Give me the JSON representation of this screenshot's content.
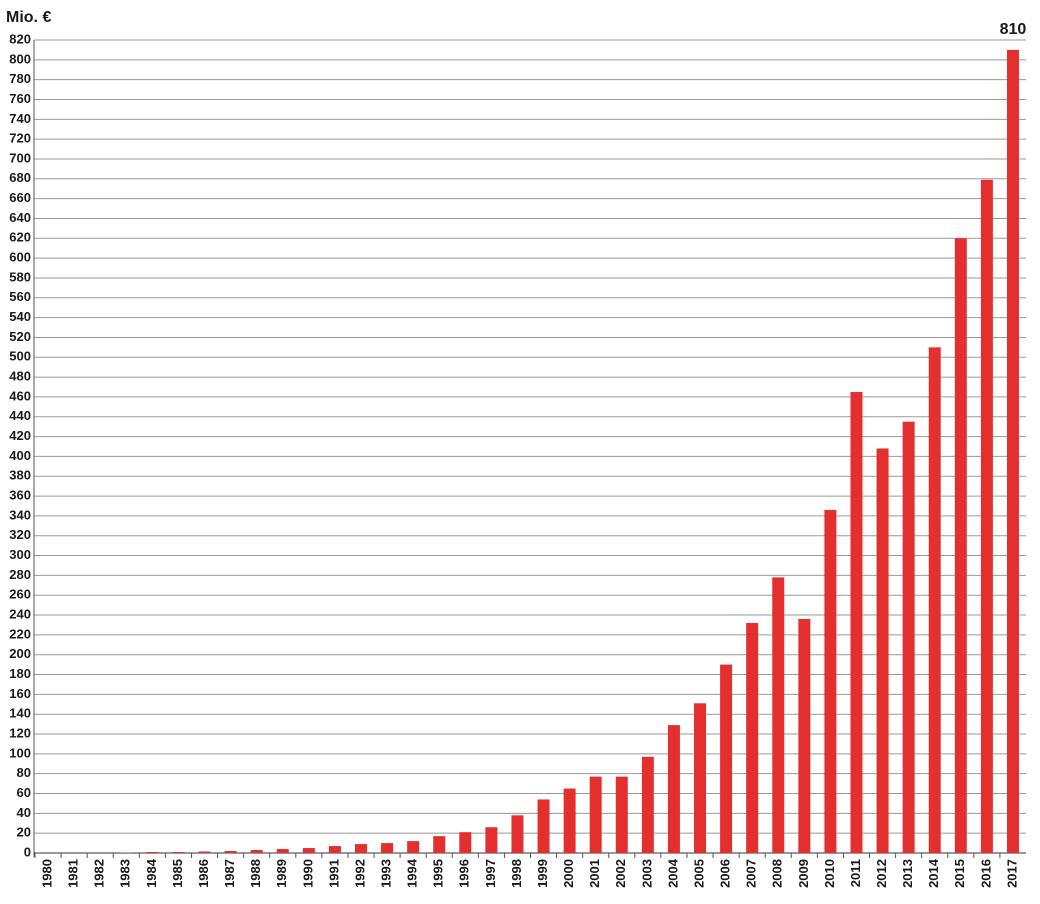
{
  "chart_data": {
    "type": "bar",
    "y_label": "Mio. €",
    "categories": [
      "1980",
      "1981",
      "1982",
      "1983",
      "1984",
      "1985",
      "1986",
      "1987",
      "1988",
      "1989",
      "1990",
      "1991",
      "1992",
      "1993",
      "1994",
      "1995",
      "1996",
      "1997",
      "1998",
      "1999",
      "2000",
      "2001",
      "2002",
      "2003",
      "2004",
      "2005",
      "2006",
      "2007",
      "2008",
      "2009",
      "2010",
      "2011",
      "2012",
      "2013",
      "2014",
      "2015",
      "2016",
      "2017"
    ],
    "values": [
      0,
      0,
      0,
      0.5,
      1,
      1,
      1.5,
      2,
      3,
      4,
      5,
      7,
      9,
      10,
      12,
      17,
      21,
      26,
      38,
      54,
      65,
      77,
      77,
      97,
      129,
      151,
      190,
      232,
      278,
      236,
      346,
      465,
      408,
      435,
      510,
      620,
      679,
      810
    ],
    "color": "#e3302f",
    "data_label": "last",
    "ylim": [
      0,
      820
    ],
    "yticks": [
      0,
      20,
      40,
      60,
      80,
      100,
      120,
      140,
      160,
      180,
      200,
      220,
      240,
      260,
      280,
      300,
      320,
      340,
      360,
      380,
      400,
      420,
      440,
      460,
      480,
      500,
      520,
      540,
      560,
      580,
      600,
      620,
      640,
      660,
      680,
      700,
      720,
      740,
      760,
      780,
      800,
      820
    ],
    "grid": true
  }
}
